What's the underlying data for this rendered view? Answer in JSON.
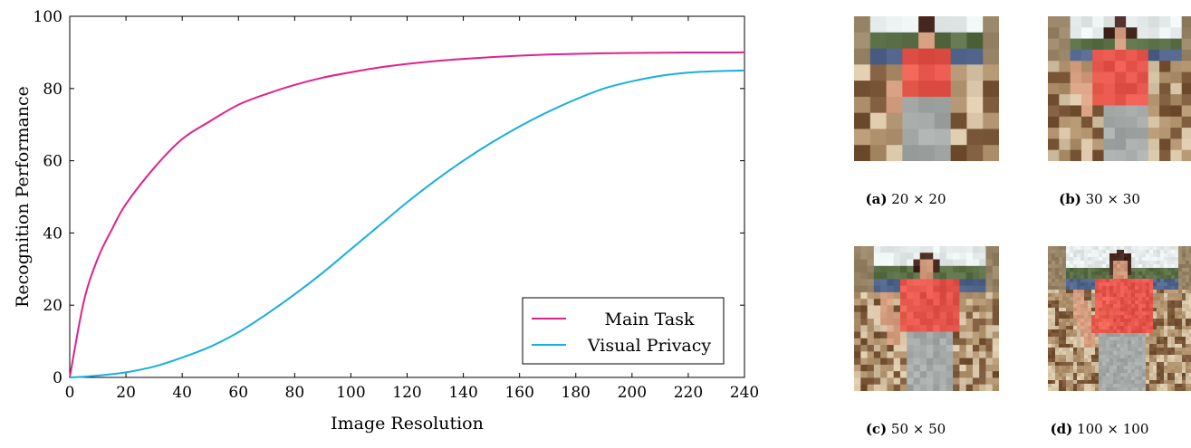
{
  "chart_data": {
    "type": "line",
    "title": "",
    "xlabel": "Image Resolution",
    "ylabel": "Recognition Performance",
    "xlim": [
      0,
      240
    ],
    "ylim": [
      0,
      100
    ],
    "x_ticks": [
      0,
      20,
      40,
      60,
      80,
      100,
      120,
      140,
      160,
      180,
      200,
      220,
      240
    ],
    "y_ticks": [
      0,
      20,
      40,
      60,
      80,
      100
    ],
    "grid": false,
    "legend_position": "bottom-right",
    "x": [
      0,
      5,
      10,
      15,
      20,
      30,
      40,
      50,
      60,
      70,
      80,
      90,
      100,
      110,
      120,
      130,
      140,
      150,
      160,
      170,
      180,
      190,
      200,
      210,
      220,
      230,
      240
    ],
    "series": [
      {
        "name": "Main Task",
        "color": "#e0218a",
        "values": [
          0,
          21,
          33,
          41,
          48,
          58,
          66,
          71,
          75.5,
          78.5,
          81,
          83,
          84.5,
          85.8,
          86.8,
          87.6,
          88.2,
          88.7,
          89.1,
          89.4,
          89.6,
          89.75,
          89.85,
          89.92,
          89.96,
          89.98,
          90
        ]
      },
      {
        "name": "Visual Privacy",
        "color": "#17aee0",
        "values": [
          0,
          0.2,
          0.5,
          0.9,
          1.4,
          3,
          5.5,
          8.5,
          12.5,
          17.5,
          23,
          29,
          35.5,
          42,
          48.5,
          54.5,
          60,
          65,
          69.5,
          73.5,
          77,
          80,
          82,
          83.5,
          84.4,
          84.8,
          85
        ]
      }
    ]
  },
  "panels": [
    {
      "tag": "(a)",
      "label": "20 × 20",
      "grid": 9
    },
    {
      "tag": "(b)",
      "label": "30 × 30",
      "grid": 13
    },
    {
      "tag": "(c)",
      "label": "50 × 50",
      "grid": 22
    },
    {
      "tag": "(d)",
      "label": "100 × 100",
      "grid": 40
    }
  ],
  "icons": {
    "photo": "elderly-woman-in-red-shirt-photo"
  }
}
